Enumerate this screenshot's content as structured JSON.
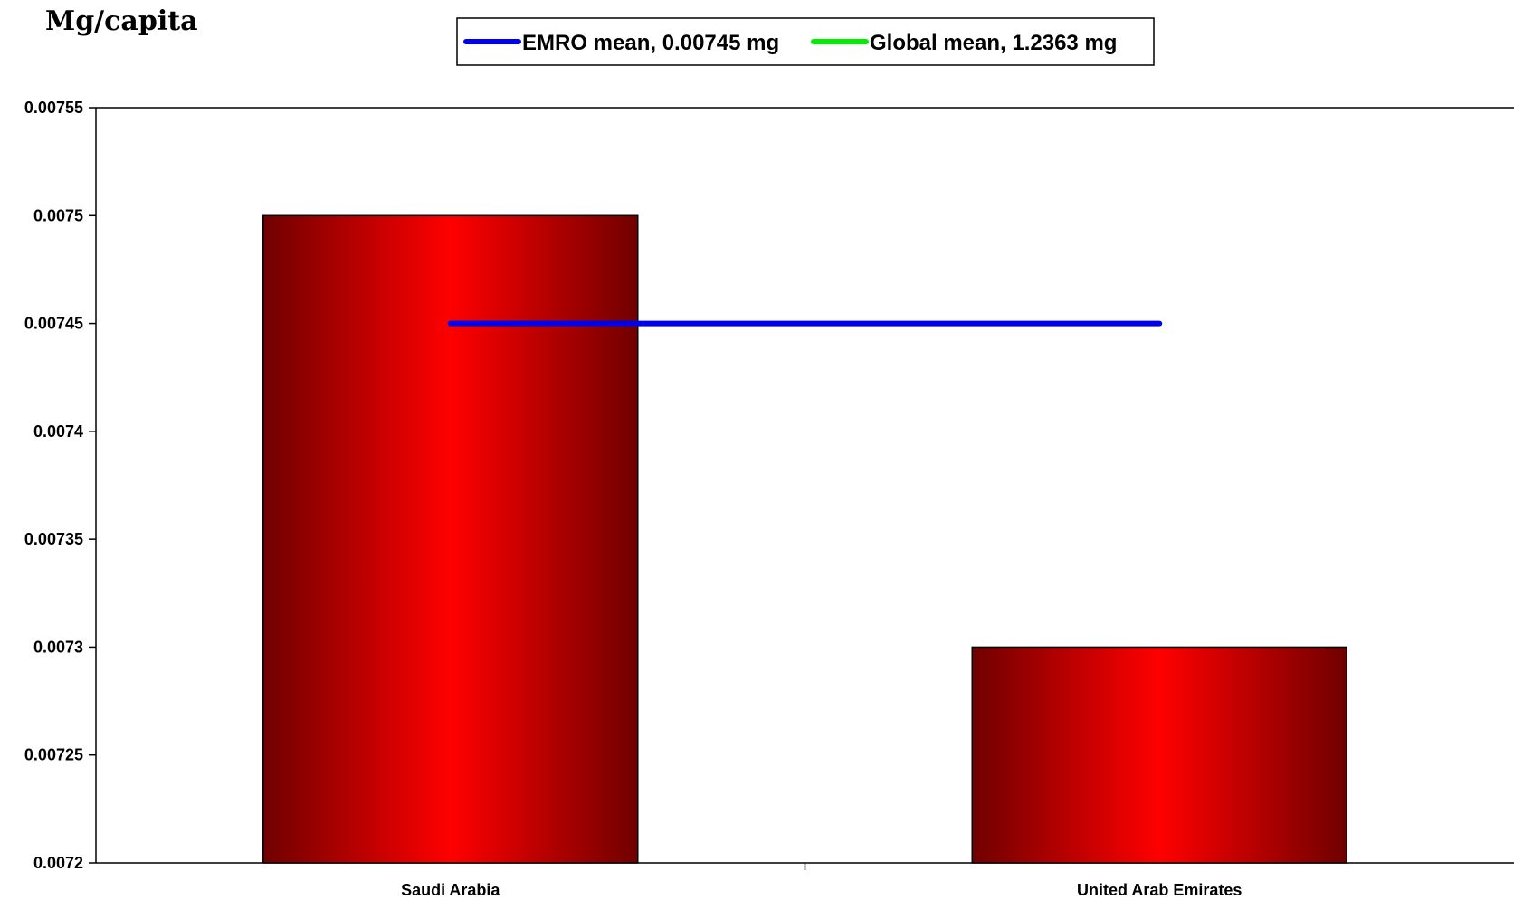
{
  "chart_data": {
    "type": "bar",
    "ylabel": "Mg/capita",
    "xlabel": "",
    "categories": [
      "Saudi Arabia",
      "United Arab Emirates"
    ],
    "values": [
      0.0075,
      0.0073
    ],
    "ylim": [
      0.0072,
      0.00755
    ],
    "yticks": [
      "0.0072",
      "0.00725",
      "0.0073",
      "0.00735",
      "0.0074",
      "0.00745",
      "0.0075",
      "0.00755"
    ],
    "bar_color": "#ff0000",
    "bar_edge_color": "#700000",
    "reference_lines": [
      {
        "name": "EMRO mean, 0.00745 mg",
        "value": 0.00745,
        "color": "#0000ee"
      },
      {
        "name": "Global mean, 1.2363 mg",
        "value": 1.2363,
        "color": "#00ee00"
      }
    ],
    "legend_position": "top-center",
    "grid": false
  }
}
